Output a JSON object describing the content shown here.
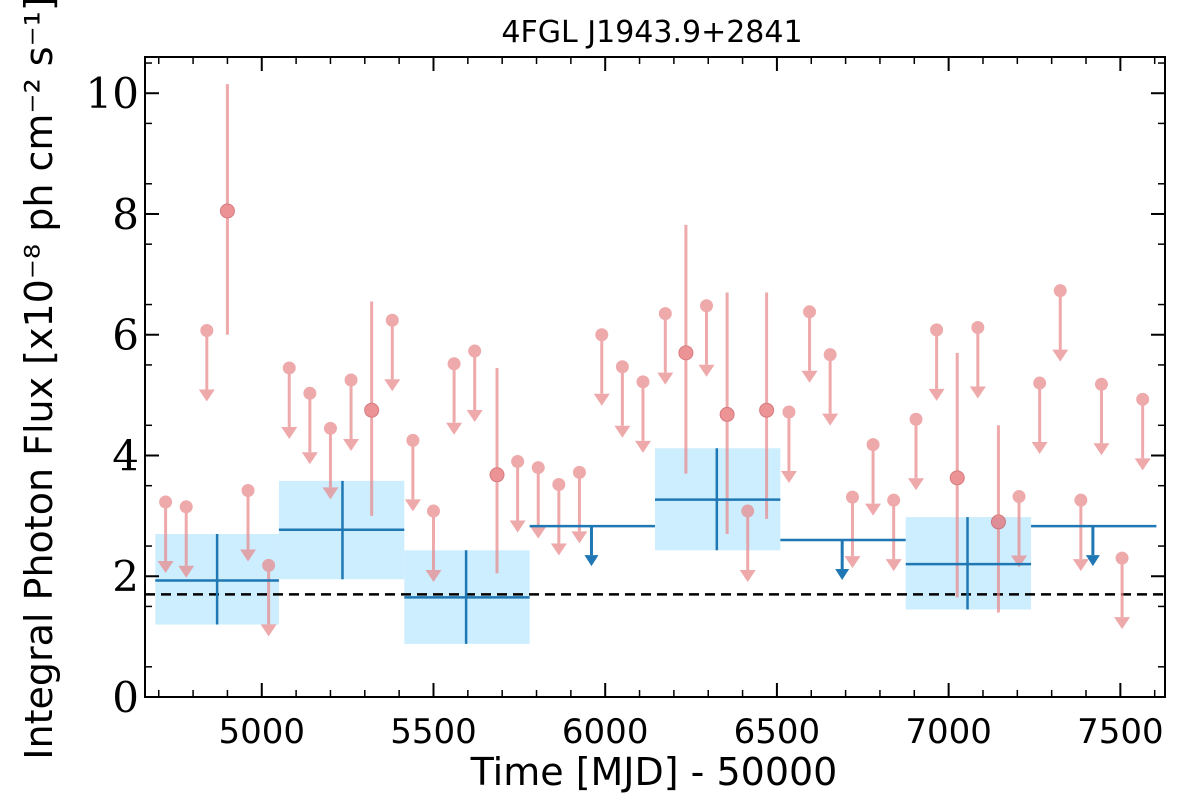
{
  "chart_data": {
    "type": "scatter",
    "title": "4FGL J1943.9+2841",
    "xlabel": "Time [MJD] - 50000",
    "ylabel": "Integral Photon Flux [x10⁻⁸ ph cm⁻² s⁻¹]",
    "xlim": [
      4660,
      7630
    ],
    "ylim": [
      0,
      10.6
    ],
    "xticks": [
      5000,
      5500,
      6000,
      6500,
      7000,
      7500
    ],
    "yticks": [
      0,
      2,
      4,
      6,
      8,
      10
    ],
    "grid": false,
    "reference_line": {
      "y": 1.7,
      "style": "dashed",
      "color": "#000000"
    },
    "colors": {
      "short_bins": "#e8888c",
      "long_bins": "#1f77b4",
      "band": "#cdeefe"
    },
    "series": [
      {
        "role": "short bins detections",
        "points": [
          {
            "x": 4900,
            "y": 8.05,
            "ylo": 6.0,
            "yhi": 10.15
          },
          {
            "x": 5320,
            "y": 4.75,
            "ylo": 3.0,
            "yhi": 6.55
          },
          {
            "x": 5685,
            "y": 3.68,
            "ylo": 2.05,
            "yhi": 5.45
          },
          {
            "x": 6235,
            "y": 5.7,
            "ylo": 3.7,
            "yhi": 7.82
          },
          {
            "x": 6355,
            "y": 4.68,
            "ylo": 2.7,
            "yhi": 6.7
          },
          {
            "x": 6470,
            "y": 4.75,
            "ylo": 2.95,
            "yhi": 6.7
          },
          {
            "x": 7025,
            "y": 3.63,
            "ylo": 1.65,
            "yhi": 5.7
          },
          {
            "x": 7145,
            "y": 2.9,
            "ylo": 1.4,
            "yhi": 4.5
          }
        ]
      },
      {
        "role": "short bins upper limits",
        "points": [
          {
            "x": 4720,
            "y": 3.23
          },
          {
            "x": 4780,
            "y": 3.15
          },
          {
            "x": 4840,
            "y": 6.07
          },
          {
            "x": 4960,
            "y": 3.42
          },
          {
            "x": 5020,
            "y": 2.18
          },
          {
            "x": 5080,
            "y": 5.45
          },
          {
            "x": 5140,
            "y": 5.03
          },
          {
            "x": 5200,
            "y": 4.45
          },
          {
            "x": 5260,
            "y": 5.25
          },
          {
            "x": 5380,
            "y": 6.24
          },
          {
            "x": 5440,
            "y": 4.25
          },
          {
            "x": 5500,
            "y": 3.08
          },
          {
            "x": 5560,
            "y": 5.52
          },
          {
            "x": 5620,
            "y": 5.73
          },
          {
            "x": 5745,
            "y": 3.9
          },
          {
            "x": 5805,
            "y": 3.8
          },
          {
            "x": 5865,
            "y": 3.52
          },
          {
            "x": 5925,
            "y": 3.72
          },
          {
            "x": 5990,
            "y": 6.0
          },
          {
            "x": 6050,
            "y": 5.47
          },
          {
            "x": 6110,
            "y": 5.22
          },
          {
            "x": 6175,
            "y": 6.35
          },
          {
            "x": 6295,
            "y": 6.48
          },
          {
            "x": 6415,
            "y": 3.08
          },
          {
            "x": 6535,
            "y": 4.72
          },
          {
            "x": 6595,
            "y": 6.38
          },
          {
            "x": 6655,
            "y": 5.67
          },
          {
            "x": 6720,
            "y": 3.31
          },
          {
            "x": 6780,
            "y": 4.18
          },
          {
            "x": 6840,
            "y": 3.26
          },
          {
            "x": 6905,
            "y": 4.6
          },
          {
            "x": 6965,
            "y": 6.08
          },
          {
            "x": 7085,
            "y": 6.12
          },
          {
            "x": 7205,
            "y": 3.32
          },
          {
            "x": 7265,
            "y": 5.2
          },
          {
            "x": 7325,
            "y": 6.73
          },
          {
            "x": 7385,
            "y": 3.26
          },
          {
            "x": 7445,
            "y": 5.18
          },
          {
            "x": 7505,
            "y": 2.3
          },
          {
            "x": 7565,
            "y": 4.93
          }
        ]
      },
      {
        "role": "long bins detections",
        "points": [
          {
            "x0": 4690,
            "x1": 5050,
            "x": 4870,
            "y": 1.93,
            "ylo": 1.2,
            "yhi": 2.7
          },
          {
            "x0": 5050,
            "x1": 5415,
            "x": 5235,
            "y": 2.77,
            "ylo": 1.95,
            "yhi": 3.58
          },
          {
            "x0": 5415,
            "x1": 5780,
            "x": 5595,
            "y": 1.65,
            "ylo": 0.88,
            "yhi": 2.43
          },
          {
            "x0": 6145,
            "x1": 6510,
            "x": 6325,
            "y": 3.27,
            "ylo": 2.43,
            "yhi": 4.12
          },
          {
            "x0": 6875,
            "x1": 7240,
            "x": 7055,
            "y": 2.2,
            "ylo": 1.45,
            "yhi": 2.98
          }
        ]
      },
      {
        "role": "long bins upper limits",
        "points": [
          {
            "x0": 5780,
            "x1": 6145,
            "x": 5960,
            "y": 2.83
          },
          {
            "x0": 6510,
            "x1": 6875,
            "x": 6690,
            "y": 2.6
          },
          {
            "x0": 7240,
            "x1": 7605,
            "x": 7420,
            "y": 2.83
          }
        ]
      }
    ]
  }
}
